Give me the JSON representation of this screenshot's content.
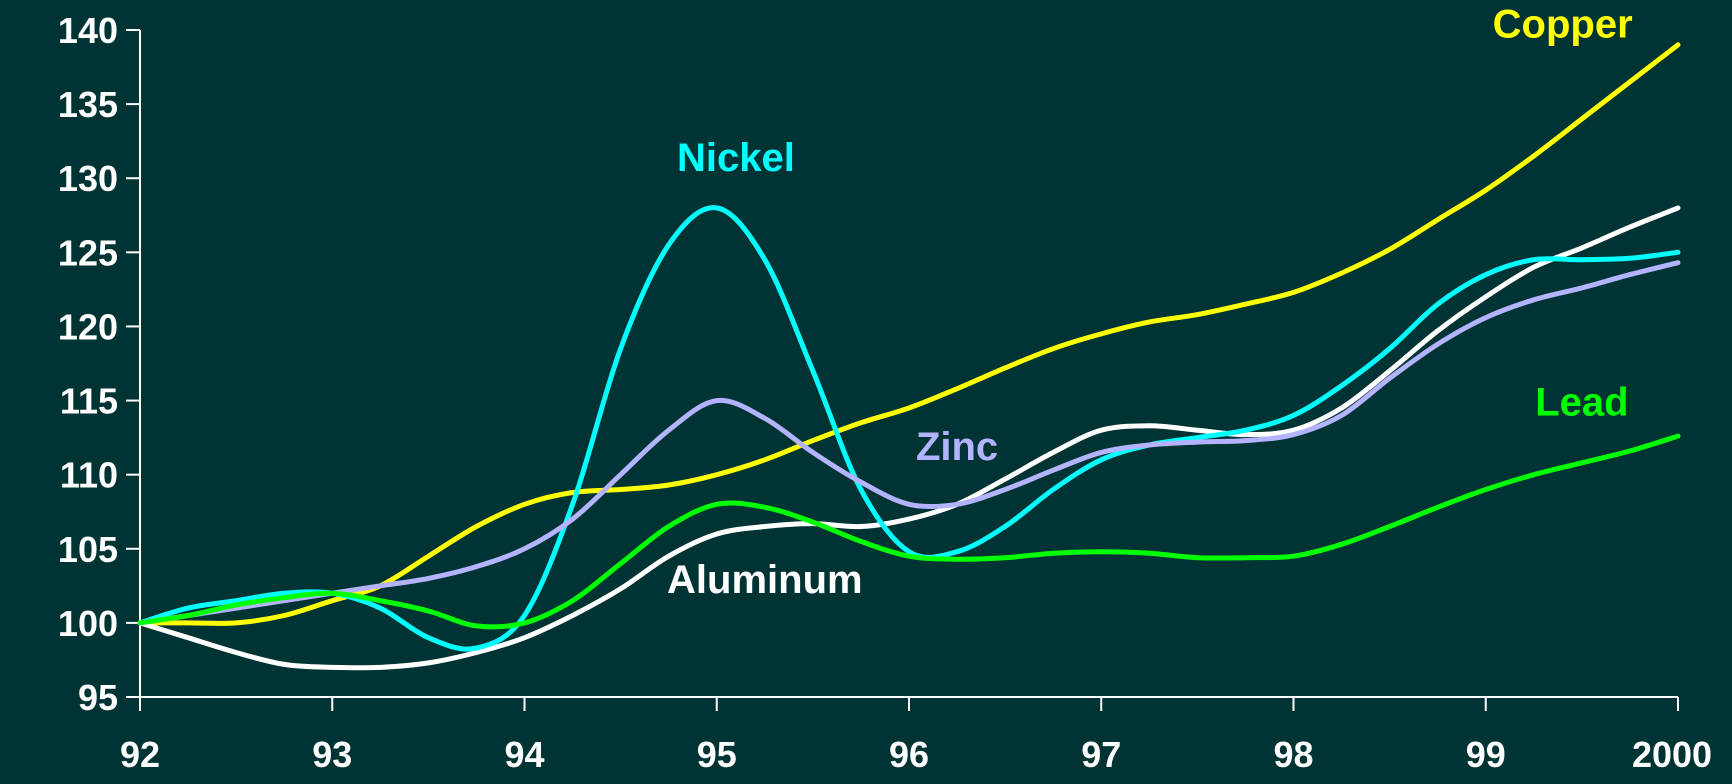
{
  "chart_data": {
    "type": "line",
    "title": "",
    "xlabel": "",
    "ylabel": "",
    "x_ticks": [
      "92",
      "93",
      "94",
      "95",
      "96",
      "97",
      "98",
      "99",
      "2000"
    ],
    "y_ticks": [
      95,
      100,
      105,
      110,
      115,
      120,
      125,
      130,
      135,
      140
    ],
    "xlim": [
      1992,
      2000
    ],
    "ylim": [
      95,
      140
    ],
    "grid": false,
    "legend": "labels placed next to lines",
    "background": "#003333",
    "series": [
      {
        "name": "Copper",
        "color": "#ffff00",
        "x": [
          1992,
          1992.25,
          1992.5,
          1992.75,
          1993,
          1993.25,
          1993.5,
          1993.75,
          1994,
          1994.25,
          1994.5,
          1994.75,
          1995,
          1995.25,
          1995.5,
          1995.75,
          1996,
          1996.25,
          1996.5,
          1996.75,
          1997,
          1997.25,
          1997.5,
          1997.75,
          1998,
          1998.25,
          1998.5,
          1998.75,
          1999,
          1999.25,
          1999.5,
          1999.75,
          2000
        ],
        "y": [
          100,
          100,
          100,
          100.5,
          101.5,
          102.5,
          104.5,
          106.5,
          108,
          108.8,
          109,
          109.3,
          110,
          111,
          112.3,
          113.5,
          114.5,
          115.8,
          117.2,
          118.5,
          119.5,
          120.3,
          120.8,
          121.5,
          122.3,
          123.6,
          125.2,
          127.2,
          129.2,
          131.5,
          134,
          136.5,
          139
        ]
      },
      {
        "name": "Aluminum",
        "color": "#ffffff",
        "x": [
          1992,
          1992.25,
          1992.5,
          1992.75,
          1993,
          1993.25,
          1993.5,
          1993.75,
          1994,
          1994.25,
          1994.5,
          1994.75,
          1995,
          1995.25,
          1995.5,
          1995.75,
          1996,
          1996.25,
          1996.5,
          1996.75,
          1997,
          1997.25,
          1997.5,
          1997.75,
          1998,
          1998.25,
          1998.5,
          1998.75,
          1999,
          1999.25,
          1999.5,
          1999.75,
          2000
        ],
        "y": [
          100,
          99,
          98,
          97.2,
          97,
          97,
          97.3,
          98,
          99,
          100.5,
          102.3,
          104.5,
          106,
          106.5,
          106.7,
          106.5,
          107,
          108,
          109.7,
          111.5,
          113,
          113.3,
          113,
          112.7,
          113,
          114.5,
          117,
          119.7,
          122,
          124,
          125.3,
          126.7,
          128
        ]
      },
      {
        "name": "Nickel",
        "color": "#00ffff",
        "x": [
          1992,
          1992.25,
          1992.5,
          1992.75,
          1993,
          1993.25,
          1993.5,
          1993.75,
          1994,
          1994.25,
          1994.5,
          1994.75,
          1995,
          1995.25,
          1995.5,
          1995.75,
          1996,
          1996.25,
          1996.5,
          1996.75,
          1997,
          1997.25,
          1997.5,
          1997.75,
          1998,
          1998.25,
          1998.5,
          1998.75,
          1999,
          1999.25,
          1999.5,
          1999.75,
          2000
        ],
        "y": [
          100,
          101,
          101.5,
          102,
          102,
          101,
          99,
          98.3,
          100.5,
          108,
          118.5,
          125.5,
          128,
          124.5,
          117,
          109,
          104.8,
          104.8,
          106.5,
          109,
          111,
          112,
          112.5,
          113,
          114,
          116,
          118.5,
          121.5,
          123.5,
          124.5,
          124.5,
          124.6,
          125
        ]
      },
      {
        "name": "Zinc",
        "color": "#b3b3ff",
        "x": [
          1992,
          1992.25,
          1992.5,
          1992.75,
          1993,
          1993.25,
          1993.5,
          1993.75,
          1994,
          1994.25,
          1994.5,
          1994.75,
          1995,
          1995.25,
          1995.5,
          1995.75,
          1996,
          1996.25,
          1996.5,
          1996.75,
          1997,
          1997.25,
          1997.5,
          1997.75,
          1998,
          1998.25,
          1998.5,
          1998.75,
          1999,
          1999.25,
          1999.5,
          1999.75,
          2000
        ],
        "y": [
          100,
          100.5,
          101,
          101.5,
          102,
          102.5,
          103,
          103.8,
          105,
          107,
          110,
          113,
          115,
          113.8,
          111.5,
          109.5,
          108,
          108,
          109,
          110.3,
          111.5,
          112,
          112.2,
          112.3,
          112.7,
          114,
          116.5,
          118.8,
          120.6,
          121.8,
          122.6,
          123.5,
          124.3
        ]
      },
      {
        "name": "Lead",
        "color": "#00ff00",
        "x": [
          1992,
          1992.25,
          1992.5,
          1992.75,
          1993,
          1993.25,
          1993.5,
          1993.75,
          1994,
          1994.25,
          1994.5,
          1994.75,
          1995,
          1995.25,
          1995.5,
          1995.75,
          1996,
          1996.25,
          1996.5,
          1996.75,
          1997,
          1997.25,
          1997.5,
          1997.75,
          1998,
          1998.25,
          1998.5,
          1998.75,
          1999,
          1999.25,
          1999.5,
          1999.75,
          2000
        ],
        "y": [
          100,
          100.5,
          101.2,
          101.7,
          102,
          101.5,
          100.8,
          99.8,
          100,
          101.5,
          104,
          106.5,
          108,
          107.8,
          106.8,
          105.5,
          104.5,
          104.3,
          104.4,
          104.7,
          104.8,
          104.7,
          104.4,
          104.4,
          104.5,
          105.3,
          106.5,
          107.8,
          109,
          110,
          110.8,
          111.6,
          112.6
        ]
      }
    ],
    "annotations": [
      {
        "text": "Copper",
        "color": "#ffff00",
        "x": 1999.4,
        "y": 139.5
      },
      {
        "text": "Nickel",
        "color": "#00ffff",
        "x": 1995.1,
        "y": 130.5
      },
      {
        "text": "Zinc",
        "color": "#b3b3ff",
        "x": 1996.25,
        "y": 111
      },
      {
        "text": "Aluminum",
        "color": "#ffffff",
        "x": 1995.25,
        "y": 102
      },
      {
        "text": "Lead",
        "color": "#00ff00",
        "x": 1999.5,
        "y": 114
      }
    ]
  }
}
